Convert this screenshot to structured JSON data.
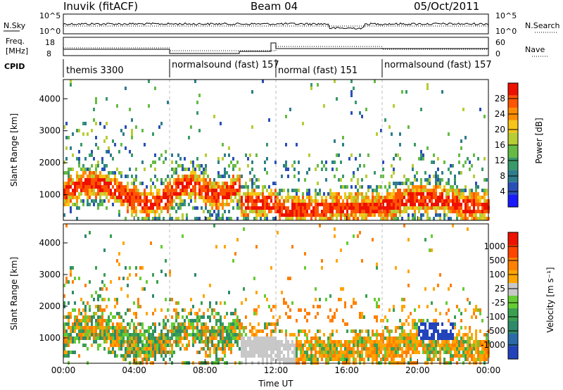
{
  "header": {
    "station": "Inuvik (fitACF)",
    "beam": "Beam 04",
    "date": "05/Oct/2011"
  },
  "strips": {
    "nsky_label": "N.Sky",
    "nsearch_label": "N.Search",
    "nsky_ticks": [
      "10^5",
      "10^0"
    ],
    "nsearch_ticks": [
      "10^5",
      "10^0"
    ],
    "freq_label_1": "Freq.",
    "freq_label_2": "[MHz]",
    "freq_ticks": [
      "18",
      "8"
    ],
    "nave_label": "Nave",
    "nave_ticks": [
      "60",
      "0"
    ],
    "cpid_label": "CPID",
    "cpid_segments": [
      {
        "label": "themis 3300",
        "start": 0,
        "end": 6
      },
      {
        "label": "normalsound (fast) 157",
        "start": 6,
        "end": 12
      },
      {
        "label": "normal (fast) 151",
        "start": 12,
        "end": 18
      },
      {
        "label": "normalsound (fast) 157",
        "start": 18,
        "end": 24
      }
    ]
  },
  "chart_data": [
    {
      "type": "heatmap",
      "title": "",
      "xlabel": "Time UT",
      "ylabel": "Slant Range [km]",
      "xlim": [
        0,
        24
      ],
      "ylim": [
        200,
        4600
      ],
      "xticks": [
        "00:00",
        "04:00",
        "08:00",
        "12:00",
        "16:00",
        "20:00",
        "00:00"
      ],
      "yticks": [
        "1000",
        "2000",
        "3000",
        "4000"
      ],
      "colorbar": {
        "label": "Power [dB]",
        "ticks": [
          "28",
          "24",
          "20",
          "16",
          "12",
          "8",
          "4"
        ],
        "range": [
          0,
          30
        ],
        "colors": [
          "#1a1aff",
          "#2a4fb8",
          "#2e7d8c",
          "#3a9a6a",
          "#66bb44",
          "#b8cc33",
          "#f5c518",
          "#ff8c00",
          "#ff5500",
          "#ee1100"
        ]
      }
    },
    {
      "type": "heatmap",
      "title": "",
      "xlabel": "Time UT",
      "ylabel": "Slant Range [km]",
      "xlim": [
        0,
        24
      ],
      "ylim": [
        200,
        4600
      ],
      "xticks": [
        "00:00",
        "04:00",
        "08:00",
        "12:00",
        "16:00",
        "20:00",
        "00:00"
      ],
      "yticks": [
        "1000",
        "2000",
        "3000",
        "4000"
      ],
      "colorbar": {
        "label": "Velocity [m s⁻¹]",
        "ticks": [
          "1000",
          "500",
          "100",
          "25",
          "-25",
          "-100",
          "-500",
          "-1000"
        ],
        "colors": [
          "#2244bb",
          "#2a6aa8",
          "#2e8a6a",
          "#3aa050",
          "#66cc33",
          "#c8c8c8",
          "#ffa500",
          "#ff7f00",
          "#ff4500",
          "#ee1100"
        ]
      }
    }
  ]
}
